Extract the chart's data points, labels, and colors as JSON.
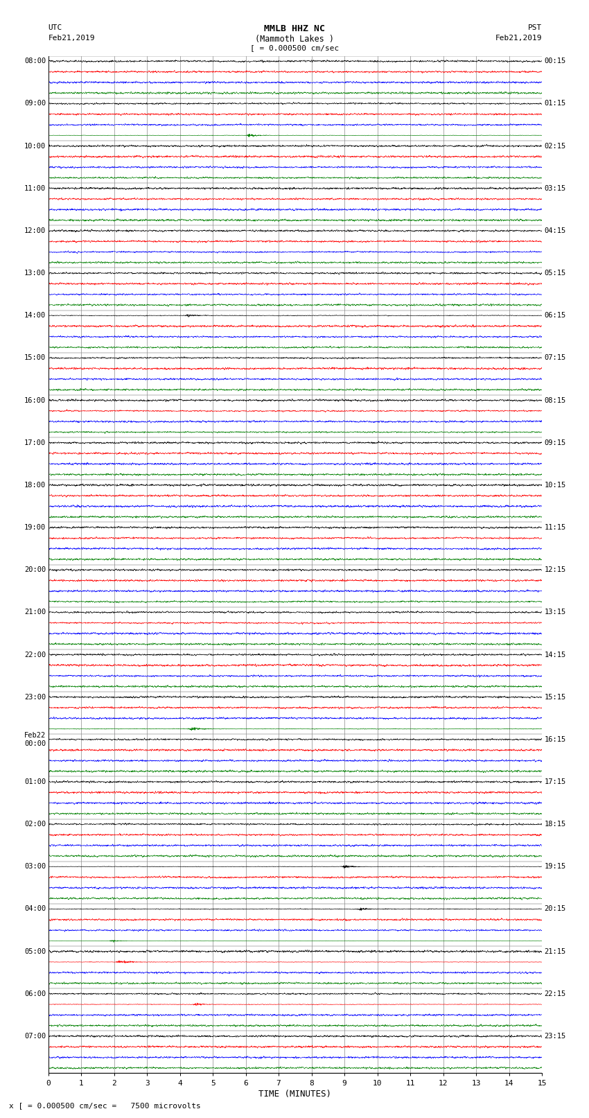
{
  "title_line1": "MMLB HHZ NC",
  "title_line2": "(Mammoth Lakes )",
  "title_line3": "[ = 0.000500 cm/sec",
  "utc_label": "UTC",
  "utc_date": "Feb21,2019",
  "pst_label": "PST",
  "pst_date": "Feb21,2019",
  "xlabel": "TIME (MINUTES)",
  "footer": "x [ = 0.000500 cm/sec =   7500 microvolts",
  "left_times": [
    "08:00",
    "09:00",
    "10:00",
    "11:00",
    "12:00",
    "13:00",
    "14:00",
    "15:00",
    "16:00",
    "17:00",
    "18:00",
    "19:00",
    "20:00",
    "21:00",
    "22:00",
    "23:00",
    "Feb22\n00:00",
    "01:00",
    "02:00",
    "03:00",
    "04:00",
    "05:00",
    "06:00",
    "07:00"
  ],
  "right_times": [
    "00:15",
    "01:15",
    "02:15",
    "03:15",
    "04:15",
    "05:15",
    "06:15",
    "07:15",
    "08:15",
    "09:15",
    "10:15",
    "11:15",
    "12:15",
    "13:15",
    "14:15",
    "15:15",
    "16:15",
    "17:15",
    "18:15",
    "19:15",
    "20:15",
    "21:15",
    "22:15",
    "23:15"
  ],
  "n_hours": 24,
  "traces_per_hour": 4,
  "colors": [
    "black",
    "red",
    "blue",
    "green"
  ],
  "bg_color": "white",
  "grid_color": "#888888",
  "n_minutes": 15,
  "samples_per_minute": 200,
  "noise_base": 0.006,
  "x_tick_spacing": 1
}
